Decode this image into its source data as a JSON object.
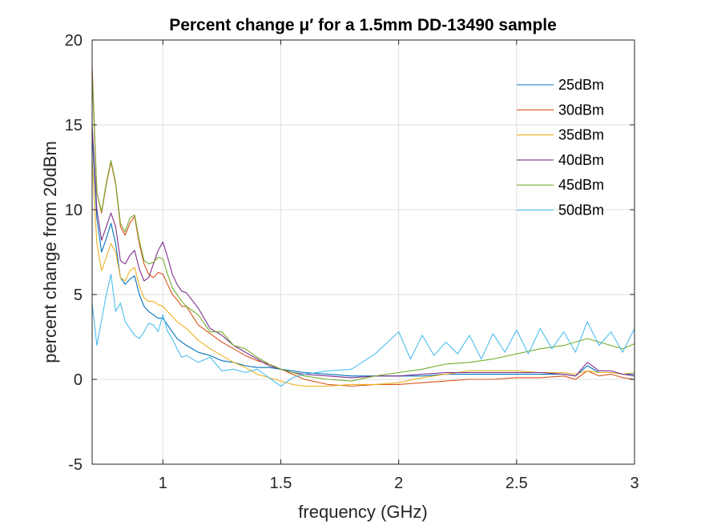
{
  "chart_data": {
    "type": "line",
    "title": "Percent change μ′ for a 1.5mm DD-13490 sample",
    "xlabel": "frequency (GHz)",
    "ylabel": "percent change from 20dBm",
    "xlim": [
      0.7,
      3
    ],
    "ylim": [
      -5,
      20
    ],
    "xticks": [
      1,
      1.5,
      2,
      2.5,
      3
    ],
    "xtick_labels": [
      "1",
      "1.5",
      "2",
      "2.5",
      "3"
    ],
    "yticks": [
      -5,
      0,
      5,
      10,
      15,
      20
    ],
    "ytick_labels": [
      "-5",
      "0",
      "5",
      "10",
      "15",
      "20"
    ],
    "grid": true,
    "legend_position": "top-right",
    "series": [
      {
        "name": "25dBm",
        "color": "#0072BD",
        "x": [
          0.7,
          0.72,
          0.74,
          0.76,
          0.78,
          0.8,
          0.82,
          0.84,
          0.86,
          0.88,
          0.9,
          0.92,
          0.94,
          0.96,
          0.98,
          1.0,
          1.02,
          1.04,
          1.06,
          1.08,
          1.1,
          1.15,
          1.2,
          1.25,
          1.3,
          1.35,
          1.4,
          1.45,
          1.5,
          1.55,
          1.6,
          1.7,
          1.8,
          1.9,
          2.0,
          2.1,
          2.2,
          2.3,
          2.4,
          2.5,
          2.6,
          2.7,
          2.75,
          2.8,
          2.85,
          2.9,
          2.95,
          3.0
        ],
        "y": [
          14.5,
          9.5,
          7.5,
          8.3,
          9.2,
          8.0,
          6.0,
          5.6,
          5.9,
          6.1,
          5.0,
          4.3,
          4.0,
          3.8,
          3.6,
          3.6,
          3.2,
          2.8,
          2.4,
          2.2,
          2.0,
          1.6,
          1.4,
          1.1,
          1.0,
          0.8,
          0.7,
          0.7,
          0.6,
          0.5,
          0.4,
          0.3,
          0.2,
          0.2,
          0.2,
          0.2,
          0.3,
          0.3,
          0.3,
          0.3,
          0.3,
          0.3,
          0.2,
          0.8,
          0.4,
          0.4,
          0.3,
          0.3
        ]
      },
      {
        "name": "30dBm",
        "color": "#D95319",
        "x": [
          0.7,
          0.72,
          0.74,
          0.76,
          0.78,
          0.8,
          0.82,
          0.84,
          0.86,
          0.88,
          0.9,
          0.92,
          0.94,
          0.96,
          0.98,
          1.0,
          1.02,
          1.04,
          1.06,
          1.08,
          1.1,
          1.15,
          1.2,
          1.25,
          1.3,
          1.35,
          1.4,
          1.45,
          1.5,
          1.55,
          1.6,
          1.7,
          1.8,
          1.9,
          2.0,
          2.1,
          2.2,
          2.3,
          2.4,
          2.5,
          2.6,
          2.7,
          2.75,
          2.8,
          2.85,
          2.9,
          2.95,
          3.0
        ],
        "y": [
          18.5,
          11.0,
          9.8,
          11.5,
          12.8,
          11.5,
          9.0,
          8.5,
          9.2,
          9.6,
          8.0,
          6.8,
          6.2,
          6.0,
          6.3,
          6.2,
          5.6,
          5.0,
          4.7,
          4.3,
          4.3,
          3.2,
          2.7,
          2.2,
          1.8,
          1.4,
          1.1,
          0.9,
          0.6,
          0.3,
          0.0,
          -0.3,
          -0.4,
          -0.3,
          -0.3,
          -0.2,
          -0.1,
          0.0,
          0.0,
          0.1,
          0.1,
          0.2,
          0.0,
          0.5,
          0.2,
          0.3,
          0.1,
          0.0
        ]
      },
      {
        "name": "35dBm",
        "color": "#EDB120",
        "x": [
          0.7,
          0.72,
          0.74,
          0.76,
          0.78,
          0.8,
          0.82,
          0.84,
          0.86,
          0.88,
          0.9,
          0.92,
          0.94,
          0.96,
          0.98,
          1.0,
          1.02,
          1.04,
          1.06,
          1.08,
          1.1,
          1.15,
          1.2,
          1.25,
          1.3,
          1.35,
          1.4,
          1.45,
          1.5,
          1.55,
          1.6,
          1.7,
          1.8,
          1.9,
          2.0,
          2.1,
          2.2,
          2.3,
          2.4,
          2.5,
          2.6,
          2.7,
          2.75,
          2.8,
          2.85,
          2.9,
          2.95,
          3.0
        ],
        "y": [
          13.0,
          8.0,
          6.4,
          7.2,
          8.0,
          7.5,
          6.0,
          5.8,
          6.4,
          6.6,
          5.5,
          4.8,
          4.6,
          4.6,
          4.4,
          4.3,
          4.0,
          3.7,
          3.4,
          3.2,
          3.0,
          2.3,
          1.8,
          1.4,
          1.0,
          0.7,
          0.3,
          0.1,
          -0.1,
          -0.3,
          -0.4,
          -0.4,
          -0.3,
          -0.3,
          -0.2,
          0.1,
          0.3,
          0.5,
          0.5,
          0.5,
          0.4,
          0.4,
          0.3,
          0.5,
          0.4,
          0.4,
          0.3,
          0.4
        ]
      },
      {
        "name": "40dBm",
        "color": "#7E2F8E",
        "x": [
          0.7,
          0.72,
          0.74,
          0.76,
          0.78,
          0.8,
          0.82,
          0.84,
          0.86,
          0.88,
          0.9,
          0.92,
          0.94,
          0.96,
          0.98,
          1.0,
          1.02,
          1.04,
          1.06,
          1.08,
          1.1,
          1.15,
          1.2,
          1.25,
          1.3,
          1.35,
          1.4,
          1.45,
          1.5,
          1.55,
          1.6,
          1.7,
          1.8,
          1.9,
          2.0,
          2.1,
          2.2,
          2.3,
          2.4,
          2.5,
          2.6,
          2.7,
          2.75,
          2.8,
          2.85,
          2.9,
          2.95,
          3.0
        ],
        "y": [
          15.0,
          10.0,
          8.2,
          9.0,
          9.8,
          9.0,
          7.0,
          6.8,
          7.3,
          7.6,
          6.5,
          5.8,
          6.0,
          6.8,
          7.6,
          8.1,
          7.2,
          6.2,
          5.6,
          5.2,
          5.1,
          4.2,
          3.0,
          2.6,
          2.0,
          1.6,
          1.2,
          0.8,
          0.6,
          0.4,
          0.3,
          0.2,
          0.1,
          0.2,
          0.2,
          0.3,
          0.4,
          0.4,
          0.4,
          0.4,
          0.4,
          0.3,
          0.2,
          1.0,
          0.5,
          0.5,
          0.3,
          0.2
        ]
      },
      {
        "name": "45dBm",
        "color": "#77AC30",
        "x": [
          0.7,
          0.72,
          0.74,
          0.76,
          0.78,
          0.8,
          0.82,
          0.84,
          0.86,
          0.88,
          0.9,
          0.92,
          0.94,
          0.96,
          0.98,
          1.0,
          1.02,
          1.04,
          1.06,
          1.08,
          1.1,
          1.15,
          1.2,
          1.25,
          1.3,
          1.35,
          1.4,
          1.45,
          1.5,
          1.55,
          1.6,
          1.7,
          1.8,
          1.9,
          2.0,
          2.1,
          2.2,
          2.3,
          2.4,
          2.5,
          2.6,
          2.7,
          2.75,
          2.8,
          2.85,
          2.9,
          2.95,
          3.0
        ],
        "y": [
          18.0,
          11.0,
          9.9,
          11.6,
          12.9,
          11.6,
          9.2,
          8.7,
          9.5,
          9.7,
          8.2,
          7.0,
          6.8,
          6.9,
          7.2,
          7.1,
          6.2,
          5.4,
          5.0,
          4.6,
          4.3,
          3.8,
          2.8,
          2.8,
          2.0,
          1.8,
          1.3,
          0.9,
          0.6,
          0.4,
          0.2,
          0.0,
          -0.1,
          0.2,
          0.4,
          0.6,
          0.9,
          1.0,
          1.2,
          1.5,
          1.8,
          2.0,
          2.2,
          2.4,
          2.2,
          2.0,
          1.8,
          2.1
        ]
      },
      {
        "name": "50dBm",
        "color": "#4DBEEE",
        "x": [
          0.7,
          0.72,
          0.74,
          0.76,
          0.78,
          0.8,
          0.82,
          0.84,
          0.86,
          0.88,
          0.9,
          0.92,
          0.94,
          0.96,
          0.98,
          1.0,
          1.02,
          1.04,
          1.06,
          1.08,
          1.1,
          1.15,
          1.2,
          1.25,
          1.3,
          1.35,
          1.4,
          1.45,
          1.5,
          1.55,
          1.6,
          1.7,
          1.8,
          1.9,
          2.0,
          2.05,
          2.1,
          2.15,
          2.2,
          2.25,
          2.3,
          2.35,
          2.4,
          2.45,
          2.5,
          2.55,
          2.6,
          2.65,
          2.7,
          2.75,
          2.8,
          2.85,
          2.9,
          2.95,
          3.0
        ],
        "y": [
          4.5,
          2.0,
          3.5,
          5.0,
          6.2,
          4.0,
          4.5,
          3.4,
          3.0,
          2.6,
          2.4,
          2.8,
          3.3,
          3.2,
          2.8,
          3.8,
          2.8,
          2.4,
          1.8,
          1.3,
          1.4,
          1.0,
          1.3,
          0.5,
          0.6,
          0.4,
          0.6,
          0.1,
          -0.4,
          0.1,
          0.3,
          0.5,
          0.6,
          1.5,
          2.8,
          1.2,
          2.6,
          1.4,
          2.2,
          1.5,
          2.6,
          1.2,
          2.7,
          1.6,
          2.9,
          1.5,
          3.0,
          1.8,
          2.8,
          1.6,
          3.4,
          2.0,
          2.8,
          1.6,
          3.0
        ]
      }
    ]
  }
}
